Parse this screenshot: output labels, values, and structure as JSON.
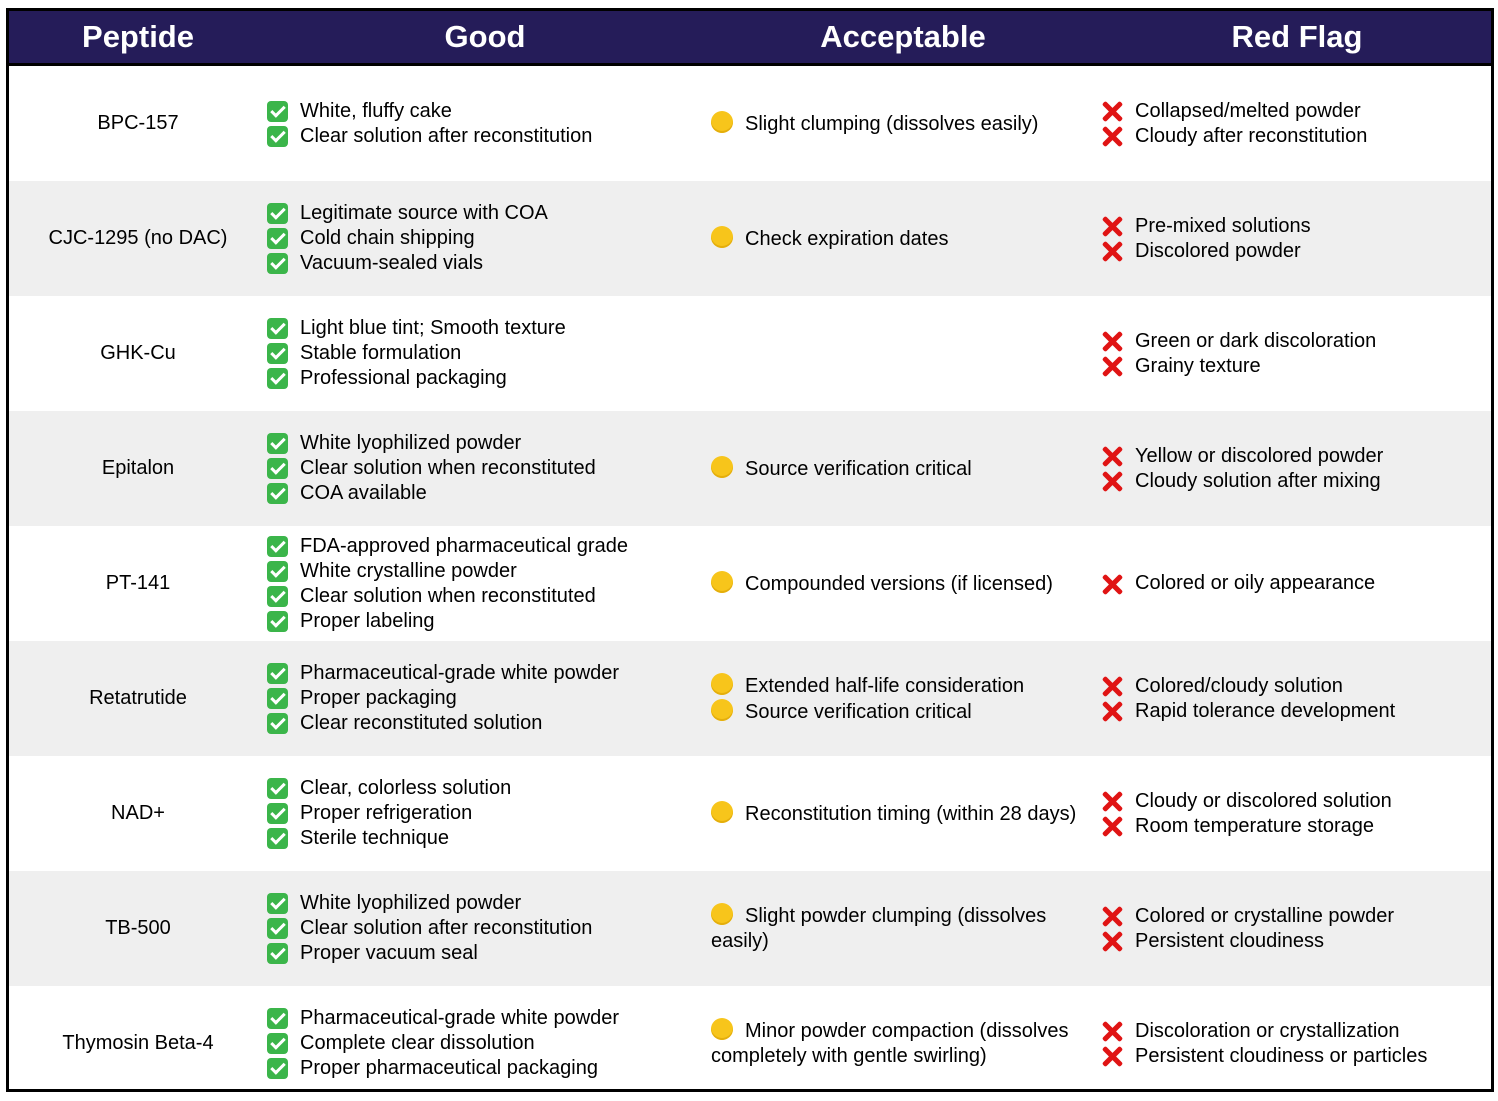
{
  "header": {
    "peptide": "Peptide",
    "good": "Good",
    "acceptable": "Acceptable",
    "red_flag": "Red Flag"
  },
  "colors": {
    "header_bg": "#251c59",
    "row_alt": "#efefef",
    "check": "#3bb54a",
    "dot": "#f7c51b",
    "cross": "#e01414"
  },
  "icons": {
    "good": "check-mark-icon",
    "acceptable": "yellow-circle-icon",
    "red_flag": "red-x-icon"
  },
  "rows": [
    {
      "peptide": "BPC-157",
      "good": [
        "White, fluffy cake",
        "Clear solution after reconstitution"
      ],
      "acceptable": [
        "Slight clumping (dissolves easily)"
      ],
      "red_flag": [
        "Collapsed/melted powder",
        "Cloudy after reconstitution"
      ]
    },
    {
      "peptide": "CJC-1295 (no DAC)",
      "good": [
        "Legitimate source with COA",
        "Cold chain shipping",
        "Vacuum-sealed vials"
      ],
      "acceptable": [
        "Check expiration dates"
      ],
      "red_flag": [
        "Pre-mixed solutions",
        "Discolored powder"
      ]
    },
    {
      "peptide": "GHK-Cu",
      "good": [
        "Light blue tint; Smooth texture",
        "Stable formulation",
        "Professional packaging"
      ],
      "acceptable": [],
      "red_flag": [
        "Green or dark discoloration",
        "Grainy texture"
      ]
    },
    {
      "peptide": "Epitalon",
      "good": [
        "White lyophilized powder",
        "Clear solution when reconstituted",
        "COA available"
      ],
      "acceptable": [
        "Source verification critical"
      ],
      "red_flag": [
        "Yellow or discolored powder",
        "Cloudy solution after mixing"
      ]
    },
    {
      "peptide": "PT-141",
      "good": [
        "FDA-approved pharmaceutical grade",
        "White crystalline powder",
        "Clear solution when reconstituted",
        "Proper labeling"
      ],
      "acceptable": [
        "Compounded versions (if licensed)"
      ],
      "red_flag": [
        "Colored or oily appearance"
      ]
    },
    {
      "peptide": "Retatrutide",
      "good": [
        "Pharmaceutical-grade white powder",
        "Proper packaging",
        "Clear reconstituted solution"
      ],
      "acceptable": [
        "Extended half-life consideration",
        "Source verification critical"
      ],
      "red_flag": [
        "Colored/cloudy solution",
        "Rapid tolerance development"
      ]
    },
    {
      "peptide": "NAD+",
      "good": [
        "Clear, colorless solution",
        "Proper refrigeration",
        "Sterile technique"
      ],
      "acceptable": [
        "Reconstitution timing (within 28 days)"
      ],
      "red_flag": [
        "Cloudy or discolored solution",
        "Room temperature storage"
      ]
    },
    {
      "peptide": "TB-500",
      "good": [
        "White lyophilized powder",
        "Clear solution after reconstitution",
        "Proper vacuum seal"
      ],
      "acceptable": [
        "Slight powder clumping (dissolves easily)"
      ],
      "red_flag": [
        "Colored or crystalline powder",
        "Persistent cloudiness"
      ]
    },
    {
      "peptide": "Thymosin Beta-4",
      "good": [
        "Pharmaceutical-grade white powder",
        "Complete clear dissolution",
        "Proper pharmaceutical packaging"
      ],
      "acceptable": [
        "Minor powder compaction (dissolves completely with gentle swirling)"
      ],
      "red_flag": [
        "Discoloration or crystallization",
        "Persistent cloudiness or particles"
      ]
    }
  ]
}
